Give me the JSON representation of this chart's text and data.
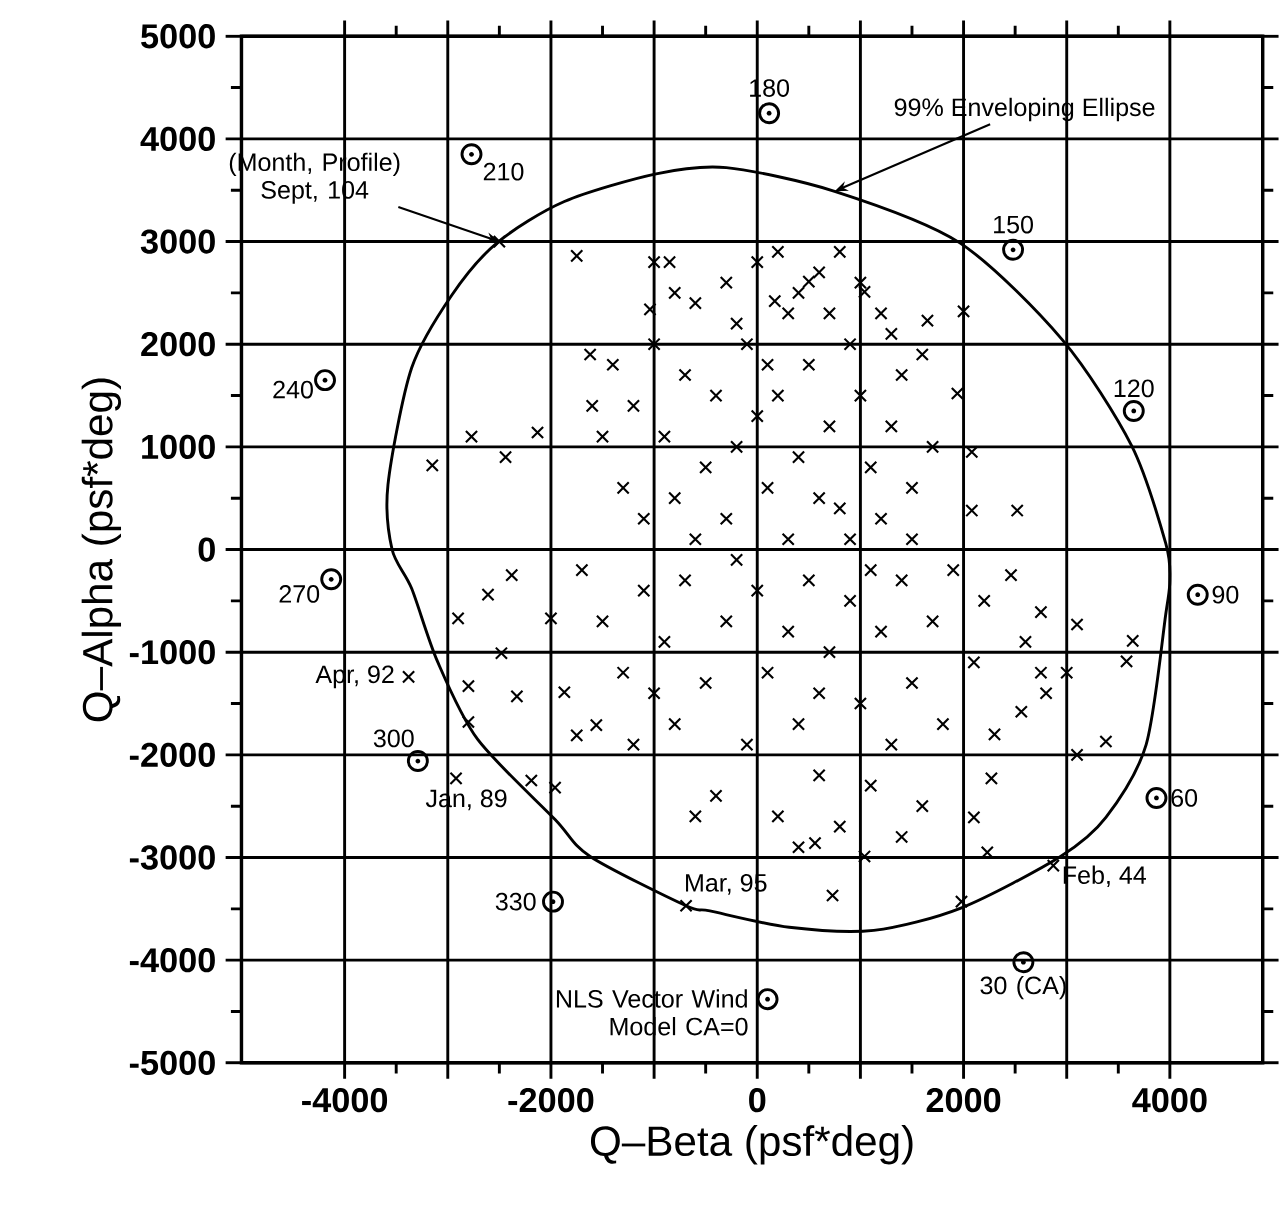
{
  "chart_data": {
    "type": "scatter",
    "xlabel": "Q–Beta (psf*deg)",
    "ylabel": "Q–Alpha (psf*deg)",
    "xlim": [
      -5000,
      4900
    ],
    "ylim": [
      -5000,
      5000
    ],
    "xticks": [
      -4000,
      {
        "value": -3000,
        "label": null
      },
      -2000,
      {
        "value": -1000,
        "label": null
      },
      0,
      {
        "value": 1000,
        "label": null
      },
      2000,
      {
        "value": 3000,
        "label": null
      },
      4000
    ],
    "yticks": [
      -5000,
      -4000,
      -3000,
      -2000,
      -1000,
      0,
      1000,
      2000,
      3000,
      4000,
      5000
    ],
    "grid": true,
    "series": [
      {
        "marker": "cross",
        "color": "#000000",
        "x": [
          -2500,
          -1750,
          -3150,
          -2770,
          -2130,
          -2440,
          -3380,
          -2900,
          -2800,
          -2800,
          -2920,
          -2190,
          -1960,
          -2330,
          -1870,
          -2480,
          -2610,
          -2380,
          -2000,
          -1750,
          -1560,
          -690,
          730,
          1980,
          2870,
          2230,
          2100,
          2270,
          3100,
          3380,
          3640,
          3580,
          3100,
          2750,
          2560,
          2750,
          2460,
          1040,
          560,
          500,
          1650,
          2000,
          1940,
          2080,
          2520,
          2080,
          1040,
          170,
          -1620,
          -1040,
          -850,
          -1000,
          -1400,
          -1200,
          -1000,
          -900,
          -700,
          -600,
          -500,
          -400,
          -300,
          -200,
          -100,
          0,
          100,
          200,
          300,
          400,
          500,
          600,
          700,
          800,
          900,
          1000,
          1100,
          1200,
          1300,
          1400,
          1500,
          1600,
          1700,
          -1300,
          -1100,
          -800,
          -600,
          -300,
          0,
          300,
          600,
          900,
          1200,
          1500,
          -1500,
          -800,
          200,
          400,
          800,
          -200,
          100,
          700,
          1000,
          1300,
          -1600,
          -1700,
          -1500,
          -1300,
          -1100,
          -900,
          -800,
          -700,
          -500,
          -400,
          -300,
          -100,
          0,
          100,
          200,
          300,
          400,
          500,
          600,
          700,
          800,
          900,
          1000,
          1100,
          1200,
          1300,
          1400,
          1500,
          1600,
          1700,
          1800,
          1900,
          2100,
          2200,
          2300,
          2600,
          2800,
          3000,
          -1200,
          -600,
          400,
          -1000,
          1400,
          -200,
          1100,
          600
        ],
        "values": [
          3000,
          2860,
          820,
          1100,
          1140,
          900,
          -1240,
          -670,
          -1330,
          -1680,
          -2230,
          -2250,
          -2320,
          -1430,
          -1390,
          -1010,
          -440,
          -250,
          -670,
          -1810,
          -1710,
          -3470,
          -3370,
          -3430,
          -3080,
          -2950,
          -2610,
          -2230,
          -2000,
          -1870,
          -890,
          -1090,
          -730,
          -610,
          -1580,
          -1200,
          -250,
          -2990,
          -2860,
          2610,
          2230,
          2320,
          1520,
          950,
          380,
          380,
          2510,
          2420,
          1900,
          2340,
          2800,
          2800,
          1800,
          1400,
          2000,
          1100,
          1700,
          2400,
          800,
          1500,
          2600,
          1000,
          2000,
          2800,
          600,
          1500,
          2300,
          900,
          1800,
          2700,
          1200,
          400,
          2000,
          1500,
          800,
          2300,
          1200,
          1700,
          600,
          1900,
          1000,
          600,
          300,
          500,
          100,
          300,
          1300,
          100,
          500,
          100,
          300,
          100,
          1100,
          2500,
          2900,
          2500,
          2900,
          2200,
          1800,
          2300,
          2600,
          2100,
          1400,
          -200,
          -700,
          -1200,
          -400,
          -900,
          -1700,
          -300,
          -1300,
          -2400,
          -700,
          -1900,
          -400,
          -1200,
          -2600,
          -800,
          -1700,
          -300,
          -2200,
          -1000,
          -2700,
          -500,
          -1500,
          -2300,
          -800,
          -1900,
          -300,
          -1300,
          -2500,
          -700,
          -1700,
          -200,
          -1100,
          -500,
          -1800,
          -900,
          -1400,
          -1200,
          -1900,
          -2600,
          -2900,
          -1400,
          -2800,
          -100,
          -200,
          -1400
        ]
      },
      {
        "marker": "circle",
        "color": "#000000",
        "x": [
          115,
          -2770,
          2480,
          3650,
          -4190,
          -4130,
          4270,
          -3290,
          3870,
          -1980,
          2580,
          100
        ],
        "values": [
          4250,
          3850,
          2920,
          1350,
          1650,
          -290,
          -440,
          -2060,
          -2420,
          -3430,
          -4020,
          -4380
        ]
      }
    ],
    "annotations": [
      {
        "text": "180",
        "x": 115,
        "y": 4250
      },
      {
        "text": "210",
        "x": -2770,
        "y": 3850
      },
      {
        "text": "150",
        "x": 2480,
        "y": 2920
      },
      {
        "text": "120",
        "x": 3650,
        "y": 1350
      },
      {
        "text": "240",
        "x": -4190,
        "y": 1650
      },
      {
        "text": "270",
        "x": -4130,
        "y": -290
      },
      {
        "text": "90",
        "x": 4270,
        "y": -440
      },
      {
        "text": "300",
        "x": -3290,
        "y": -2060
      },
      {
        "text": "60",
        "x": 3870,
        "y": -2420
      },
      {
        "text": "330",
        "x": -1980,
        "y": -3430
      },
      {
        "text": "30 (CA)",
        "x": 2580,
        "y": -4020
      },
      {
        "text": "NLS Vector Wind Model CA=0",
        "x": 100,
        "y": -4380
      },
      {
        "text": "(Month, Profile) Sept, 104",
        "x": -2500,
        "y": 3000
      },
      {
        "text": "Apr, 92",
        "x": -3380,
        "y": -1240
      },
      {
        "text": "Jan, 89",
        "x": -2920,
        "y": -2230
      },
      {
        "text": "Mar, 95",
        "x": -690,
        "y": -3470
      },
      {
        "text": "Feb, 44",
        "x": 2870,
        "y": -3080
      },
      "99% Enveloping Ellipse"
    ]
  }
}
